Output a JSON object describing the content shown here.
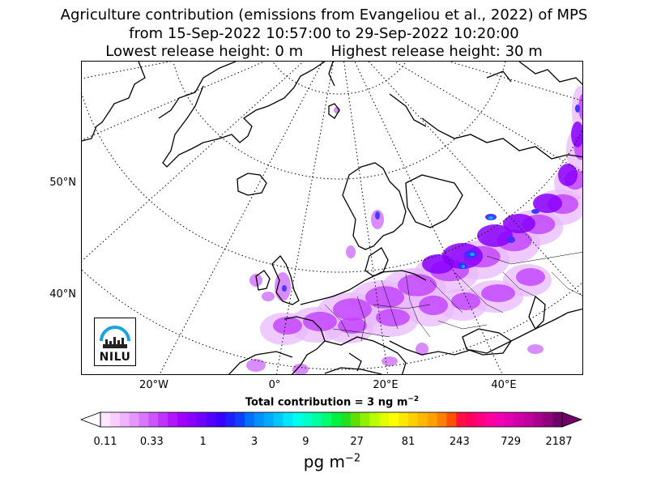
{
  "title": {
    "line1": "Agriculture contribution (emissions from Evangeliou et al., 2022) of MPS",
    "line2": "from 15-Sep-2022 10:57:00 to 29-Sep-2022 10:20:00",
    "line3": "Lowest release height: 0 m      Highest release height: 30 m"
  },
  "map": {
    "lat_labels": [
      "50°N",
      "40°N"
    ],
    "lon_labels": [
      "20°W",
      "0°",
      "20°E",
      "40°E"
    ],
    "logo_text": "NILU",
    "colors": {
      "land_outline": "#000000",
      "graticule": "#000000",
      "plume_light": "#e8b8ff",
      "plume_mid": "#c040ff",
      "plume_strong": "#8a00ff",
      "plume_peak": "#3a30ff",
      "plume_max": "#00b0ff",
      "logo_arc": "#1aa3e0"
    }
  },
  "total_contribution": "Total contribution = 3 ng m",
  "total_contribution_exp": "−2",
  "colorbar": {
    "tick_labels": [
      "0.11",
      "0.33",
      "1",
      "3",
      "9",
      "27",
      "81",
      "243",
      "729",
      "2187"
    ],
    "unit": "pg m",
    "unit_exp": "−2",
    "colors": [
      "#fde7ff",
      "#f8d0ff",
      "#efb4ff",
      "#e596ff",
      "#d978ff",
      "#cc55ff",
      "#bf33ff",
      "#b115ff",
      "#a000ff",
      "#8a00ff",
      "#7000ff",
      "#5200ff",
      "#3a00ff",
      "#2020ff",
      "#1040ff",
      "#0070ff",
      "#0090ff",
      "#00aaff",
      "#00c8ff",
      "#00e6ff",
      "#00ffea",
      "#00ffc8",
      "#00ffa0",
      "#00ff70",
      "#00f040",
      "#20e020",
      "#60e000",
      "#90f000",
      "#b8ff00",
      "#e0ff00",
      "#ffff00",
      "#ffe800",
      "#ffd000",
      "#ffb800",
      "#ffa000",
      "#ff8000",
      "#ff5000",
      "#ff1040",
      "#ff0060",
      "#ff0080",
      "#ff00a0",
      "#f000b0",
      "#e000b0",
      "#d000a8",
      "#c0009c",
      "#a8008c",
      "#90007c",
      "#700068"
    ]
  }
}
